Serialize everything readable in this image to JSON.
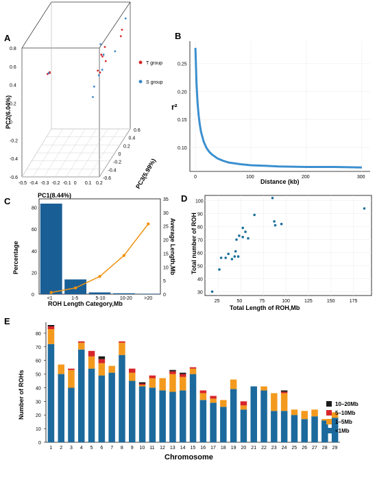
{
  "panels": {
    "A": "A",
    "B": "B",
    "C": "C",
    "D": "D",
    "E": "E"
  },
  "chart_data": [
    {
      "panel": "A",
      "type": "scatter",
      "xlabel": "PC1(8.44%)",
      "ylabel": "PC2(6.04%)",
      "zlabel": "PC3(5.99%)",
      "x_ticks": [
        "-0.5",
        "-0.4",
        "-0.3",
        "-0.2",
        "-0.1",
        "0",
        "0.1",
        "0.2"
      ],
      "y_ticks": [
        "-0.6",
        "-0.4",
        "-0.2",
        "0",
        "0.2",
        "0.4",
        "0.6",
        "0.8"
      ],
      "z_ticks": [
        "-0.6",
        "-0.4",
        "-0.2",
        "0",
        "0.2",
        "0.4",
        "0.6"
      ],
      "legend": [
        "T group",
        "S group"
      ],
      "colors": {
        "T": "#d62728",
        "S": "#3a86c8"
      },
      "series": [
        {
          "name": "T group",
          "points": [
            [
              -0.38,
              0.3,
              -0.1
            ],
            [
              -0.36,
              0.31,
              -0.1
            ],
            [
              -0.36,
              0.32,
              -0.1
            ],
            [
              0.05,
              0.36,
              0.2
            ],
            [
              0.08,
              0.31,
              0.2
            ],
            [
              0.04,
              0.38,
              0.2
            ],
            [
              0.05,
              0.42,
              0.3
            ],
            [
              0.03,
              0.25,
              0.1
            ],
            [
              0.05,
              0.23,
              0.1
            ],
            [
              0.15,
              0.45,
              0.5
            ],
            [
              0.16,
              0.52,
              0.5
            ]
          ]
        },
        {
          "name": "S group",
          "points": [
            [
              -0.37,
              0.31,
              -0.1
            ],
            [
              0.06,
              0.38,
              0.2
            ],
            [
              0.07,
              0.26,
              0.1
            ],
            [
              0.04,
              0.2,
              0.1
            ],
            [
              0.02,
              0.12,
              0.0
            ],
            [
              0.03,
              0.05,
              -0.1
            ],
            [
              0.01,
              0.45,
              0.3
            ],
            [
              0.17,
              0.6,
              0.6
            ],
            [
              0.12,
              0.33,
              0.4
            ]
          ]
        }
      ]
    },
    {
      "panel": "B",
      "type": "line",
      "xlabel": "Distance (kb)",
      "ylabel": "r²",
      "x_ticks": [
        0,
        100,
        200,
        300
      ],
      "y_ticks": [
        0.1,
        0.15,
        0.2,
        0.25
      ],
      "y_tick_labels": [
        "0.10",
        "0.15",
        "0.20",
        "0.25"
      ],
      "xlim": [
        -10,
        315
      ],
      "ylim": [
        0.057,
        0.29
      ],
      "color": "#3a8fcf",
      "x": [
        0,
        2,
        4,
        6,
        8,
        10,
        15,
        20,
        25,
        30,
        40,
        50,
        60,
        80,
        100,
        125,
        150,
        200,
        250,
        300
      ],
      "y": [
        0.278,
        0.214,
        0.178,
        0.156,
        0.14,
        0.128,
        0.11,
        0.099,
        0.092,
        0.087,
        0.08,
        0.076,
        0.073,
        0.07,
        0.068,
        0.067,
        0.066,
        0.065,
        0.065,
        0.064
      ]
    },
    {
      "panel": "C",
      "type": "bar",
      "xlabel": "ROH Length Category,Mb",
      "ylabel": "Percentage",
      "ylabel_right": "Average Length,Mb",
      "categories": [
        "<1",
        "1-5",
        "5-10",
        "10-20",
        ">20"
      ],
      "percentage": [
        83.6,
        13.6,
        1.6,
        0.8,
        0.4
      ],
      "average_length": [
        0.6,
        2.3,
        6.5,
        14.2,
        25.8
      ],
      "left_ticks": [
        0,
        20,
        40,
        60,
        80
      ],
      "right_ticks": [
        0,
        5,
        10,
        15,
        20,
        25,
        30,
        35
      ],
      "ylim_left": [
        0,
        88
      ],
      "ylim_right": [
        0,
        35
      ],
      "bar_color": "#1a5e96",
      "line_color": "#f0920f"
    },
    {
      "panel": "D",
      "type": "scatter",
      "xlabel": "Total Length of ROH,Mb",
      "ylabel": "Total number of ROH",
      "x_ticks": [
        25,
        50,
        75,
        100,
        125,
        150,
        175
      ],
      "y_ticks": [
        30,
        40,
        50,
        60,
        70,
        80,
        90,
        100
      ],
      "xlim": [
        10,
        195
      ],
      "ylim": [
        27,
        104
      ],
      "color": "#1a6e99",
      "points": [
        [
          18,
          30
        ],
        [
          26,
          47
        ],
        [
          28,
          56
        ],
        [
          33,
          56
        ],
        [
          36,
          59
        ],
        [
          40,
          55
        ],
        [
          43,
          57
        ],
        [
          44,
          61
        ],
        [
          47,
          57
        ],
        [
          45,
          70
        ],
        [
          48,
          73
        ],
        [
          52,
          72
        ],
        [
          52,
          79
        ],
        [
          55,
          76
        ],
        [
          58,
          71
        ],
        [
          65,
          89
        ],
        [
          85,
          102
        ],
        [
          87,
          84
        ],
        [
          88,
          81
        ],
        [
          95,
          82
        ],
        [
          187,
          94
        ]
      ]
    },
    {
      "panel": "E",
      "type": "bar",
      "stacked": true,
      "xlabel": "Chromosome",
      "ylabel": "Number of ROHs",
      "categories": [
        "1",
        "2",
        "3",
        "4",
        "5",
        "6",
        "7",
        "8",
        "9",
        "10",
        "11",
        "12",
        "13",
        "14",
        "15",
        "16",
        "17",
        "18",
        "19",
        "20",
        "21",
        "22",
        "23",
        "24",
        "25",
        "26",
        "27",
        "28",
        "29"
      ],
      "y_ticks": [
        0,
        10,
        20,
        30,
        40,
        50,
        60,
        70,
        80
      ],
      "ylim": [
        0,
        88
      ],
      "legend": [
        "10–20Mb",
        "5–10Mb",
        "1–5Mb",
        "<1Mb"
      ],
      "colors": {
        "<1Mb": "#1c6a9d",
        "1–5Mb": "#f39a1e",
        "5–10Mb": "#d7262b",
        "10–20Mb": "#1a1a1a"
      },
      "series": [
        {
          "name": "<1Mb",
          "values": [
            72,
            50,
            40,
            68,
            54,
            49,
            51,
            64,
            45,
            41,
            40,
            38,
            37,
            38,
            50,
            31,
            29,
            26,
            39,
            24,
            41,
            38,
            23,
            23,
            20,
            17,
            19,
            16,
            18
          ]
        },
        {
          "name": "1–5Mb",
          "values": [
            11,
            7,
            13,
            5,
            9,
            9,
            5,
            9,
            6,
            1,
            7,
            9,
            13,
            10,
            4,
            5,
            3,
            5,
            7,
            3,
            0,
            3,
            13,
            13,
            4,
            6,
            5,
            1,
            4
          ]
        },
        {
          "name": "5–10Mb",
          "values": [
            2,
            0,
            1,
            1,
            4,
            3,
            0,
            1,
            3,
            1,
            2,
            0,
            2,
            2,
            1,
            2,
            2,
            0,
            0,
            3,
            0,
            0,
            0,
            1,
            0,
            0,
            0,
            0,
            0
          ]
        },
        {
          "name": "10–20Mb",
          "values": [
            1,
            0,
            0,
            0,
            0,
            2,
            0,
            0,
            0,
            1,
            0,
            0,
            1,
            1,
            0,
            0,
            0,
            0,
            0,
            0,
            0,
            0,
            0,
            1,
            0,
            0,
            0,
            0,
            0
          ]
        }
      ]
    }
  ]
}
